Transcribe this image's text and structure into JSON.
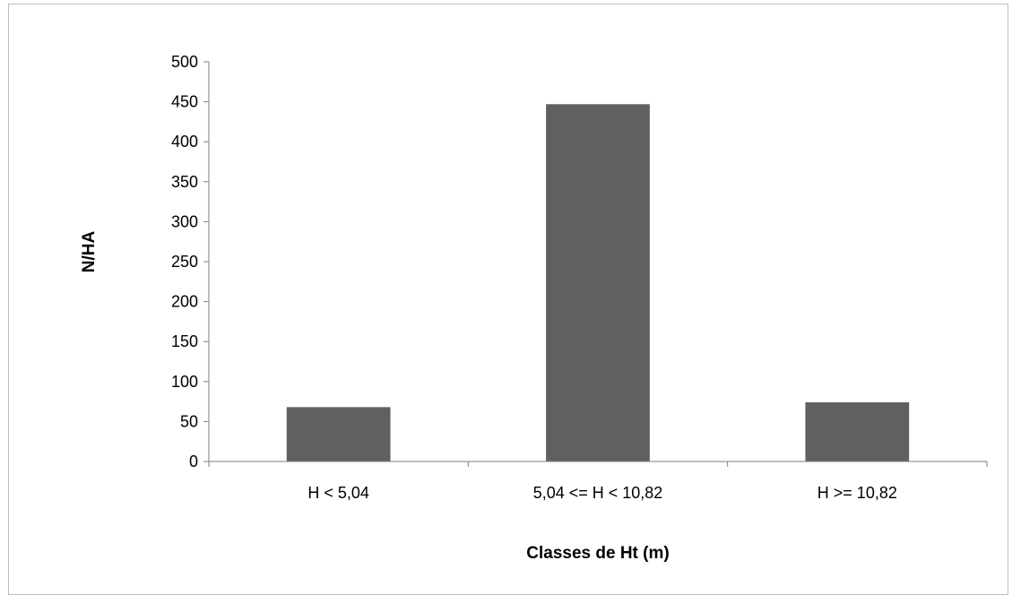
{
  "chart_data": {
    "type": "bar",
    "categories": [
      "H < 5,04",
      "5,04 <= H < 10,82",
      "H >= 10,82"
    ],
    "values": [
      68,
      447,
      74
    ],
    "title": "",
    "xlabel": "Classes de Ht (m)",
    "ylabel": "N/HA",
    "ylim": [
      0,
      500
    ],
    "yticks": [
      0,
      50,
      100,
      150,
      200,
      250,
      300,
      350,
      400,
      450,
      500
    ],
    "grid": false,
    "legend": "none",
    "bar_color": "#606060",
    "axis_color": "#7f7f7f"
  }
}
